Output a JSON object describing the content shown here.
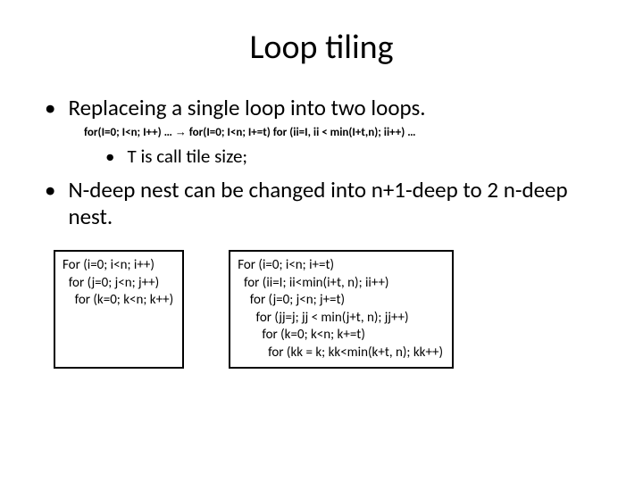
{
  "title": "Loop tiling",
  "bullet1": "Replaceing a single loop into two loops.",
  "codeLine": "for(I=0; I<n; I++) … ",
  "codeLineAfter": " for(I=0; I<n; I+=t) for (ii=I, ii < min(I+t,n); ii++) …",
  "arrow": "→",
  "bullet1sub": "T is call tile size;",
  "bullet2": "N-deep nest can be changed into n+1-deep to 2 n-deep nest.",
  "box1_l1": "For (i=0; i<n; i++)",
  "box1_l2": "  for (j=0; j<n; j++)",
  "box1_l3": "    for (k=0; k<n; k++)",
  "box2_l1": "For (i=0; i<n; i+=t)",
  "box2_l2": "  for (ii=I; ii<min(i+t, n); ii++)",
  "box2_l3": "    for (j=0; j<n; j+=t)",
  "box2_l4": "      for (jj=j; jj < min(j+t, n); jj++)",
  "box2_l5": "        for (k=0; k<n; k+=t)",
  "box2_l6": "          for (kk = k; kk<min(k+t, n); kk++)",
  "colors": {
    "background": "#ffffff",
    "text": "#000000",
    "border": "#000000"
  },
  "fontsizes": {
    "title": 38,
    "bullet_l1": 25,
    "sub_code": 13,
    "bullet_l3": 21,
    "codebox": 15
  }
}
